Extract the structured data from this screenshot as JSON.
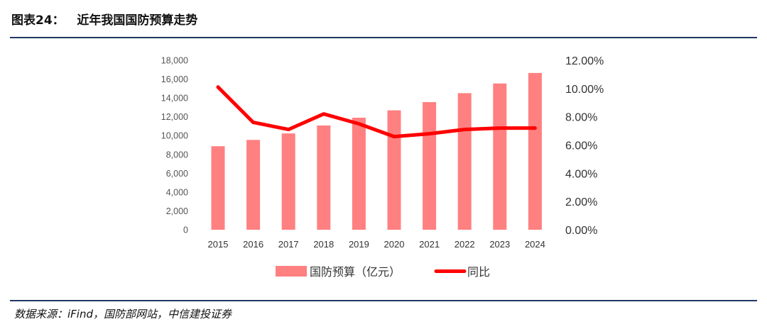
{
  "header": {
    "title": "图表24：   近年我国国防预算走势"
  },
  "footer": {
    "source": "数据来源：iFind，国防部网站，中信建投证券"
  },
  "colors": {
    "bar": "#ff8080",
    "line": "#ff0000",
    "rule": "#1f3864"
  },
  "chart_data": {
    "type": "bar",
    "categories": [
      "2015",
      "2016",
      "2017",
      "2018",
      "2019",
      "2020",
      "2021",
      "2022",
      "2023",
      "2024"
    ],
    "series": [
      {
        "name": "国防预算（亿元）",
        "type": "bar",
        "axis": "left",
        "values": [
          8869,
          9544,
          10226,
          11070,
          11899,
          12680,
          13553,
          14505,
          15537,
          16655
        ]
      },
      {
        "name": "同比",
        "type": "line",
        "axis": "right",
        "values": [
          10.1,
          7.6,
          7.1,
          8.2,
          7.5,
          6.6,
          6.8,
          7.1,
          7.2,
          7.2
        ]
      }
    ],
    "y_left": {
      "min": 0,
      "max": 18000,
      "step": 2000,
      "ticks": [
        "0",
        "2,000",
        "4,000",
        "6,000",
        "8,000",
        "10,000",
        "12,000",
        "14,000",
        "16,000",
        "18,000"
      ]
    },
    "y_right": {
      "min": 0,
      "max": 12,
      "step": 2,
      "ticks": [
        "0.00%",
        "2.00%",
        "4.00%",
        "6.00%",
        "8.00%",
        "10.00%",
        "12.00%"
      ]
    },
    "grid": false,
    "legend_position": "bottom"
  }
}
